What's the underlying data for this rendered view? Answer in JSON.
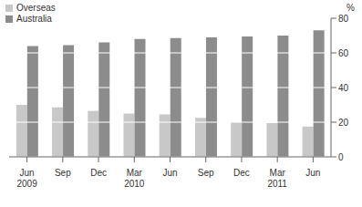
{
  "chart_data": {
    "type": "bar",
    "y_label": "%",
    "categories": [
      "Jun 2009",
      "Sep",
      "Dec",
      "Mar 2010",
      "Jun",
      "Sep",
      "Dec",
      "Mar 2011",
      "Jun"
    ],
    "series": [
      {
        "name": "Overseas",
        "color": "#c8c8c8",
        "values": [
          30,
          28.5,
          26.5,
          25,
          24.5,
          22.5,
          20,
          19.5,
          17.5
        ]
      },
      {
        "name": "Australia",
        "color": "#8c8c8c",
        "values": [
          64,
          64.5,
          66,
          68,
          68.5,
          69,
          69.5,
          70,
          73
        ]
      }
    ],
    "ylim": [
      0,
      80
    ],
    "yticks": [
      0,
      20,
      40,
      60,
      80
    ],
    "grid": true,
    "legend": "top-left"
  }
}
